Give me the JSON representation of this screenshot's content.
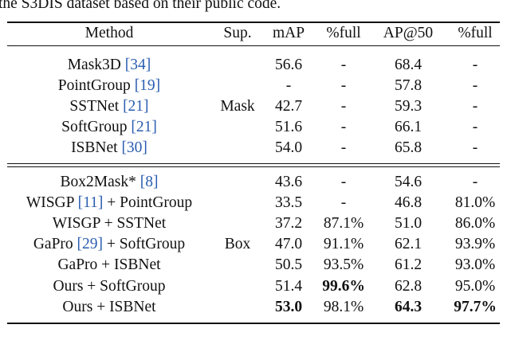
{
  "caption_top": "the S3DIS dataset based on their public code.",
  "table": {
    "header": [
      "Method",
      "Sup.",
      "mAP",
      "%full",
      "AP@50",
      "%full"
    ],
    "groups": [
      {
        "sup": "Mask",
        "rows": [
          {
            "method": [
              "Mask3D ",
              "[34]"
            ],
            "cells": [
              "56.6",
              "-",
              "68.4",
              "-"
            ]
          },
          {
            "method": [
              "PointGroup ",
              "[19]"
            ],
            "cells": [
              "-",
              "-",
              "57.8",
              "-"
            ]
          },
          {
            "method": [
              "SSTNet ",
              "[21]"
            ],
            "cells": [
              "42.7",
              "-",
              "59.3",
              "-"
            ]
          },
          {
            "method": [
              "SoftGroup ",
              "[21]"
            ],
            "cells": [
              "51.6",
              "-",
              "66.1",
              "-"
            ]
          },
          {
            "method": [
              "ISBNet ",
              "[30]"
            ],
            "cells": [
              "54.0",
              "-",
              "65.8",
              "-"
            ]
          }
        ]
      },
      {
        "sup": "Box",
        "rows": [
          {
            "method": [
              "Box2Mask* ",
              "[8]"
            ],
            "cells": [
              "43.6",
              "-",
              "54.6",
              "-"
            ]
          },
          {
            "method": [
              "WISGP ",
              "[11]",
              " + PointGroup"
            ],
            "cells": [
              "33.5",
              "-",
              "46.8",
              "81.0%"
            ]
          },
          {
            "method": [
              "WISGP + SSTNet"
            ],
            "cells": [
              "37.2",
              "87.1%",
              "51.0",
              "86.0%"
            ]
          },
          {
            "method": [
              "GaPro ",
              "[29]",
              " + SoftGroup"
            ],
            "cells": [
              "47.0",
              "91.1%",
              "62.1",
              "93.9%"
            ]
          },
          {
            "method": [
              "GaPro + ISBNet"
            ],
            "cells": [
              "50.5",
              "93.5%",
              "61.2",
              "93.0%"
            ]
          },
          {
            "method": [
              "Ours + SoftGroup"
            ],
            "cells": [
              "51.4",
              "99.6%",
              "62.8",
              "95.0%"
            ],
            "bold": [
              1
            ]
          },
          {
            "method": [
              "Ours + ISBNet"
            ],
            "cells": [
              "53.0",
              "98.1%",
              "64.3",
              "97.7%"
            ],
            "bold": [
              0,
              2,
              3
            ]
          }
        ]
      }
    ]
  }
}
